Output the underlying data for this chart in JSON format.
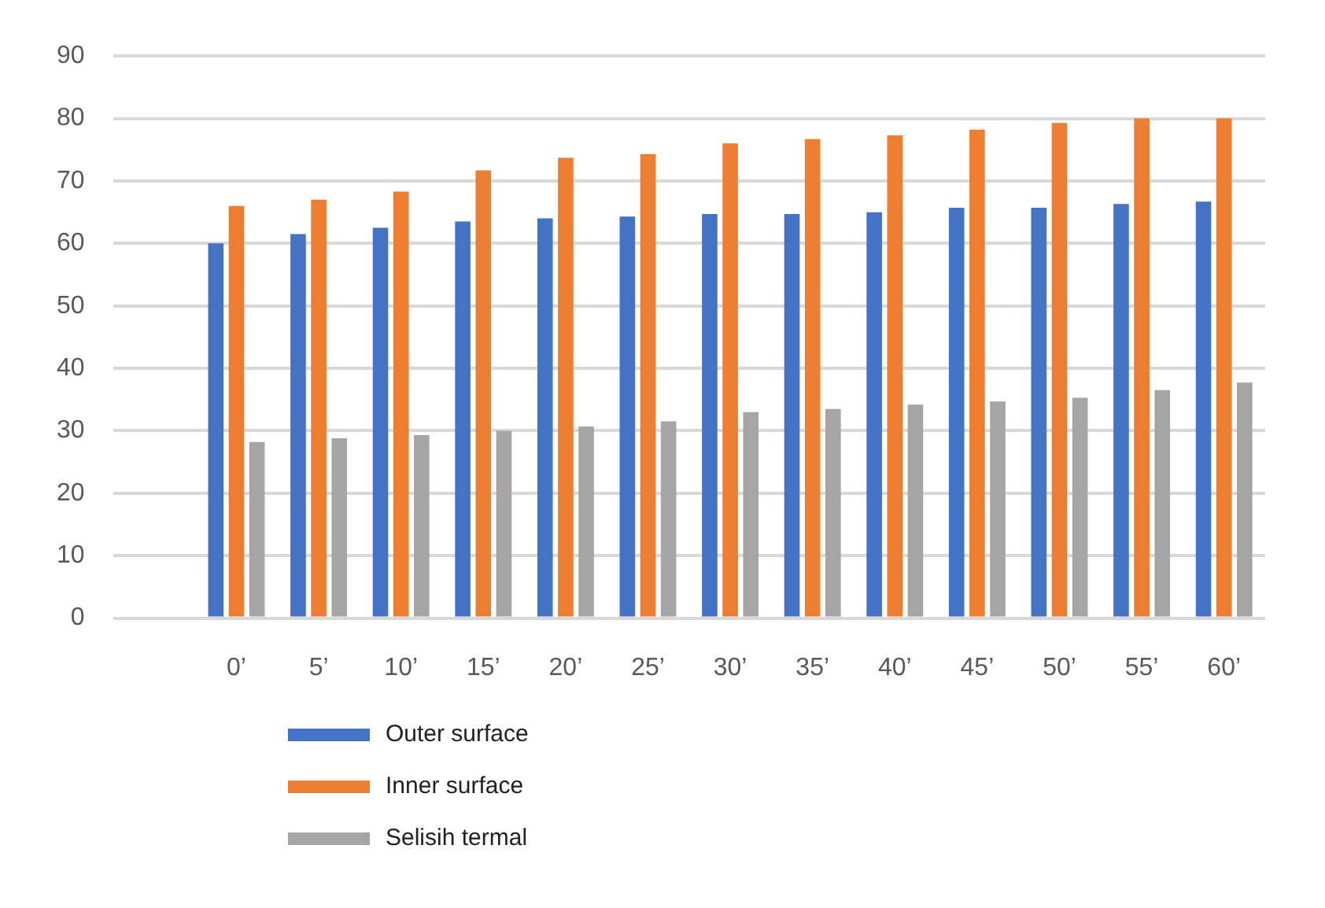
{
  "chart_data": {
    "type": "bar",
    "categories": [
      null,
      "0’",
      "5’",
      "10’",
      "15’",
      "20’",
      "25’",
      "30’",
      "35’",
      "40’",
      "45’",
      "50’",
      "55’",
      "60’"
    ],
    "series": [
      {
        "name": "Outer surface",
        "color": "#4472c4",
        "values": [
          null,
          60,
          61.5,
          62.5,
          63.5,
          64,
          64.3,
          64.7,
          64.7,
          65,
          65.7,
          65.7,
          66.3,
          66.7
        ]
      },
      {
        "name": "Inner surface",
        "color": "#ed7d31",
        "values": [
          null,
          66,
          67,
          68.3,
          71.7,
          73.7,
          74.3,
          76,
          76.7,
          77.3,
          78.2,
          79.3,
          80,
          80
        ]
      },
      {
        "name": "Selisih termal",
        "color": "#a5a5a5",
        "values": [
          null,
          28.2,
          28.8,
          29.3,
          30,
          30.7,
          31.5,
          33,
          33.5,
          34.2,
          34.7,
          35.3,
          36.5,
          37.7
        ]
      }
    ],
    "ylim": [
      0,
      90
    ],
    "yticks": [
      0,
      10,
      20,
      30,
      40,
      50,
      60,
      70,
      80,
      90
    ],
    "grid": "y",
    "legend": "bottom"
  }
}
